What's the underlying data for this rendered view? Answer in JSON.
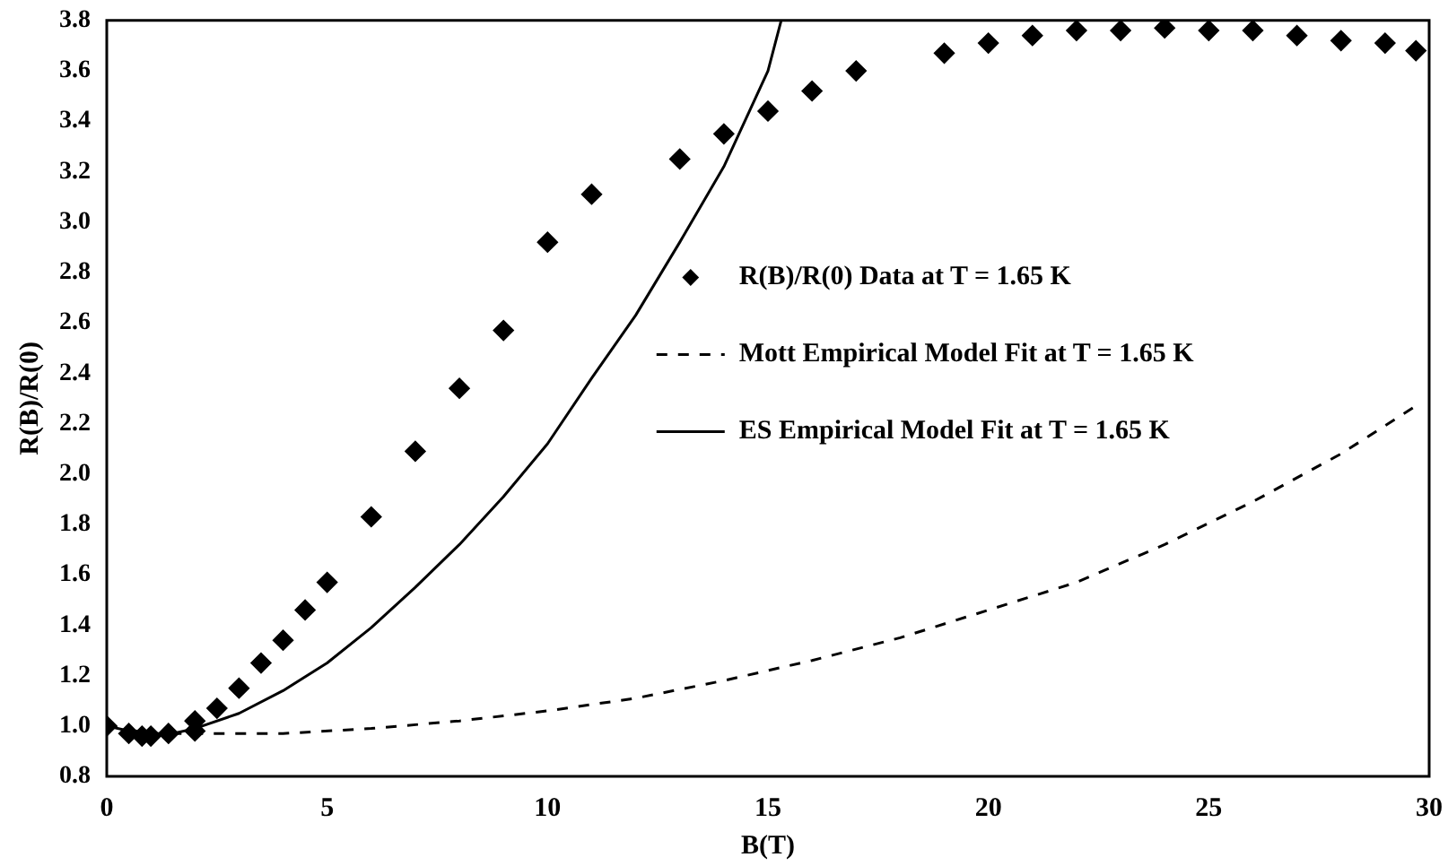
{
  "chart_data": {
    "type": "scatter",
    "xlabel": "B(T)",
    "ylabel": "R(B)/R(0)",
    "xlim": [
      0,
      30
    ],
    "xticks": [
      0,
      5,
      10,
      15,
      20,
      25,
      30
    ],
    "ylim": [
      0.8,
      3.8
    ],
    "yticks": [
      0.8,
      {
        "value": 1,
        "label": "1.0"
      },
      1.2,
      1.4,
      1.6,
      1.8,
      {
        "value": 2,
        "label": "2.0"
      },
      2.2,
      2.4,
      2.6,
      2.8,
      {
        "value": 3,
        "label": "3.0"
      },
      3.2,
      3.4,
      3.6,
      3.8
    ],
    "grid": false,
    "legend": "right",
    "series": [
      {
        "name": "R(B)/R(0) Data at T = 1.65 K",
        "type": "scatter",
        "marker": "diamond",
        "color": "#000000",
        "x": [
          0,
          0.5,
          0.8,
          1.0,
          1.4,
          2,
          2,
          2.5,
          3,
          3.5,
          4,
          4.5,
          5,
          6,
          7,
          8,
          9,
          10,
          11,
          13,
          14,
          15,
          16,
          17,
          19,
          20,
          21,
          22,
          23,
          24,
          25,
          26,
          27,
          28,
          29,
          29.7
        ],
        "values": [
          1.0,
          0.97,
          0.96,
          0.96,
          0.97,
          0.98,
          1.02,
          1.07,
          1.15,
          1.25,
          1.34,
          1.46,
          1.57,
          1.83,
          2.09,
          2.34,
          2.57,
          2.92,
          3.11,
          3.25,
          3.35,
          3.44,
          3.52,
          3.6,
          3.67,
          3.71,
          3.74,
          3.76,
          3.76,
          3.77,
          3.76,
          3.76,
          3.74,
          3.72,
          3.71,
          3.68
        ]
      },
      {
        "name": "Mott Empirical Model Fit at T = 1.65 K",
        "type": "line",
        "line_style": "dashed",
        "marker": "none",
        "color": "#000000",
        "x": [
          0,
          1,
          2,
          4,
          6,
          8,
          10,
          12,
          14,
          16,
          18,
          20,
          22,
          24,
          26,
          28,
          29.7
        ],
        "values": [
          1.0,
          0.97,
          0.97,
          0.97,
          0.99,
          1.02,
          1.06,
          1.11,
          1.18,
          1.26,
          1.35,
          1.46,
          1.57,
          1.72,
          1.89,
          2.08,
          2.27
        ]
      },
      {
        "name": "ES Empirical Model Fit at T = 1.65 K",
        "type": "line",
        "line_style": "solid",
        "marker": "none",
        "color": "#000000",
        "x": [
          0,
          1,
          1.5,
          2,
          3,
          4,
          5,
          6,
          7,
          8,
          9,
          10,
          11,
          12,
          13,
          14,
          15,
          15.3
        ],
        "values": [
          1.0,
          0.96,
          0.97,
          0.99,
          1.05,
          1.14,
          1.25,
          1.39,
          1.55,
          1.72,
          1.91,
          2.12,
          2.38,
          2.63,
          2.92,
          3.22,
          3.6,
          3.8
        ]
      }
    ]
  }
}
